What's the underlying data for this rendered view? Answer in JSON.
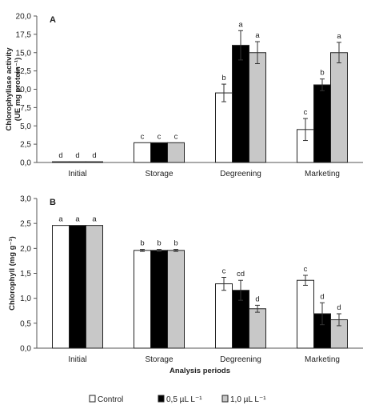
{
  "legend": [
    {
      "label": "Control",
      "color": "#ffffff"
    },
    {
      "label": "0,5 µL L⁻¹",
      "color": "#000000"
    },
    {
      "label": "1,0 µL L⁻¹",
      "color": "#c8c8c8"
    }
  ],
  "chart_data": [
    {
      "type": "bar",
      "panel": "A",
      "title": "",
      "xlabel": "",
      "ylabel": "Chlorophyllase activity\n(UE mg protein⁻¹)",
      "ylim": [
        0,
        20
      ],
      "yticks": [
        "0,0",
        "2,5",
        "5,0",
        "7,5",
        "10,0",
        "12,5",
        "15,0",
        "17,5",
        "20,0"
      ],
      "categories": [
        "Initial",
        "Storage",
        "Degreening",
        "Marketing"
      ],
      "series": [
        {
          "name": "Control",
          "color": "#ffffff",
          "values": [
            0.1,
            2.7,
            9.5,
            4.5
          ],
          "errors": [
            0,
            0,
            1.2,
            1.5
          ],
          "letters": [
            "d",
            "c",
            "b",
            "c"
          ]
        },
        {
          "name": "0,5 µL L⁻¹",
          "color": "#000000",
          "values": [
            0.1,
            2.7,
            16.0,
            10.6
          ],
          "errors": [
            0,
            0,
            2.0,
            0.8
          ],
          "letters": [
            "d",
            "c",
            "a",
            "b"
          ]
        },
        {
          "name": "1,0 µL L⁻¹",
          "color": "#c8c8c8",
          "values": [
            0.1,
            2.7,
            15.0,
            15.0
          ],
          "errors": [
            0,
            0,
            1.5,
            1.4
          ],
          "letters": [
            "d",
            "c",
            "a",
            "a"
          ]
        }
      ],
      "grid": false
    },
    {
      "type": "bar",
      "panel": "B",
      "title": "",
      "xlabel": "Analysis periods",
      "ylabel": "Chlorophyll (mg g⁻¹)",
      "ylim": [
        0,
        3
      ],
      "yticks": [
        "0,0",
        "0,5",
        "1,0",
        "1,5",
        "2,0",
        "2,5",
        "3,0"
      ],
      "categories": [
        "Initial",
        "Storage",
        "Degreening",
        "Marketing"
      ],
      "series": [
        {
          "name": "Control",
          "color": "#ffffff",
          "values": [
            2.46,
            1.96,
            1.29,
            1.36
          ],
          "errors": [
            0,
            0.02,
            0.13,
            0.1
          ],
          "letters": [
            "a",
            "b",
            "c",
            "c"
          ]
        },
        {
          "name": "0,5 µL L⁻¹",
          "color": "#000000",
          "values": [
            2.46,
            1.96,
            1.16,
            0.69
          ],
          "errors": [
            0,
            0.02,
            0.2,
            0.22
          ],
          "letters": [
            "a",
            "b",
            "cd",
            "d"
          ]
        },
        {
          "name": "1,0 µL L⁻¹",
          "color": "#c8c8c8",
          "values": [
            2.46,
            1.96,
            0.79,
            0.57
          ],
          "errors": [
            0,
            0.02,
            0.07,
            0.12
          ],
          "letters": [
            "a",
            "b",
            "d",
            "d"
          ]
        }
      ],
      "grid": false
    }
  ]
}
